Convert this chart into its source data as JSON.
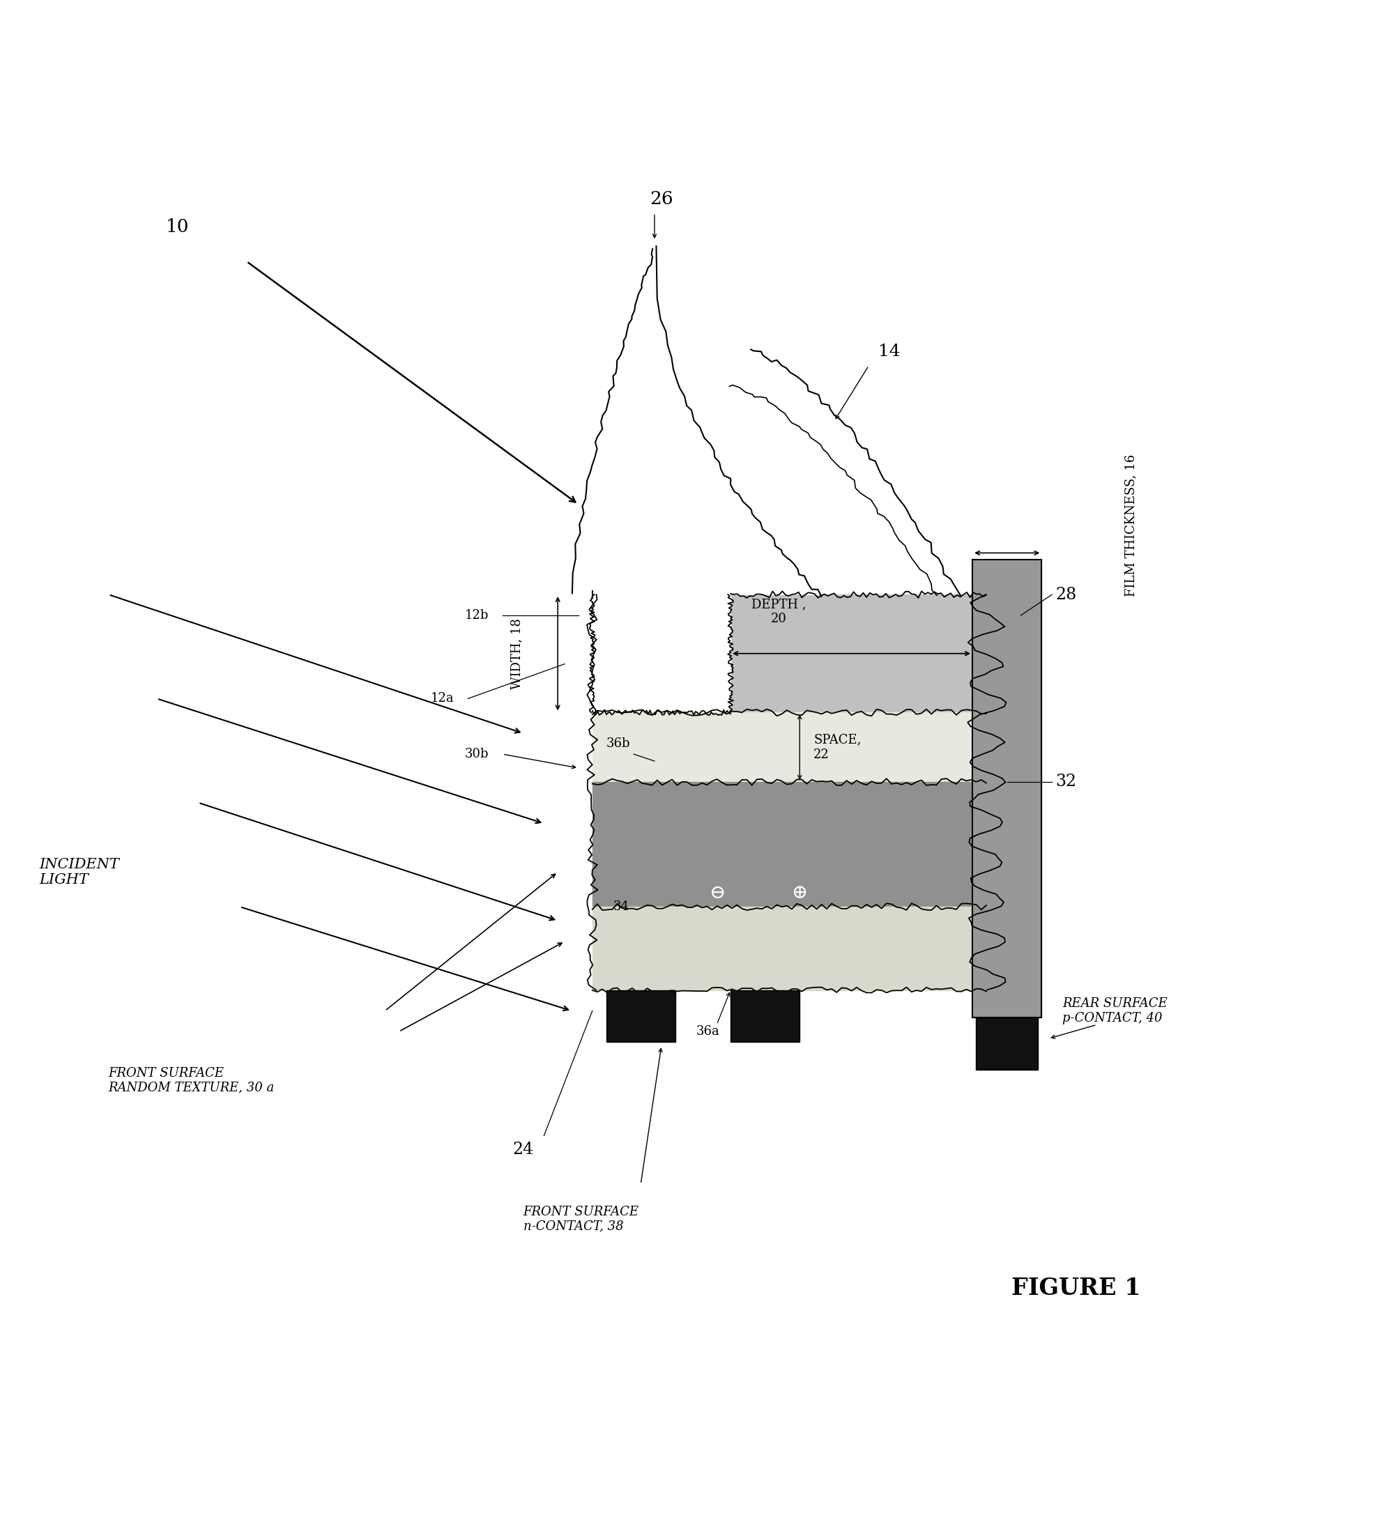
{
  "fig_width": 19.97,
  "fig_height": 22.04,
  "bg_color": "#ffffff",
  "labels": {
    "incident_light": "INCIDENT\nLIGHT",
    "front_surface_texture": "FRONT SURFACE\nRANDOM TEXTURE, 30 a",
    "front_contact": "FRONT SURFACE\nn-CONTACT, 38",
    "rear_contact": "REAR SURFACE\np-CONTACT, 40",
    "film_thickness": "FILM THICKNESS, 16",
    "depth": "DEPTH ,\n20",
    "width": "WIDTH, 18",
    "space": "SPACE,\n22",
    "figure": "FIGURE 1"
  },
  "refs": {
    "n10": "10",
    "n12a": "12a",
    "n12b": "12b",
    "n14": "14",
    "n24": "24",
    "n26": "26",
    "n28": "28",
    "n30b": "30b",
    "n32": "32",
    "n34": "34",
    "n36a": "36a",
    "n36b": "36b",
    "n38": "38",
    "n40": "40"
  },
  "colors": {
    "top_gray": "#c0c0c0",
    "space_white": "#e8e8e0",
    "absorber_gray": "#909090",
    "bot_white": "#d8d8cc",
    "rear_dark": "#989898",
    "rear_darker": "#808080",
    "black": "#111111",
    "white": "#ffffff",
    "lc": "#000000"
  }
}
